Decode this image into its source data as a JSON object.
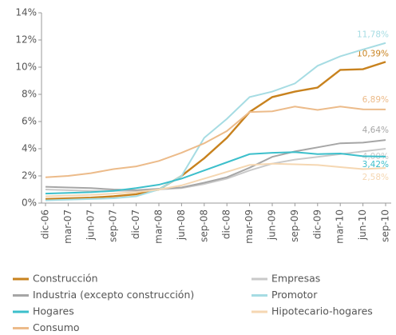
{
  "chart_data": {
    "type": "line",
    "categories": [
      "dic-06",
      "mar-07",
      "jun-07",
      "sep-07",
      "dic-07",
      "mar-08",
      "jun-08",
      "sep-08",
      "dic-08",
      "mar-09",
      "jun-09",
      "sep-09",
      "dic-09",
      "mar-10",
      "jun-10",
      "sep-10"
    ],
    "ylim": [
      0,
      14
    ],
    "yticks": [
      {
        "value": 0,
        "label": "0%"
      },
      {
        "value": 2,
        "label": "2%"
      },
      {
        "value": 4,
        "label": "4%"
      },
      {
        "value": 6,
        "label": "6%"
      },
      {
        "value": 8,
        "label": "8%"
      },
      {
        "value": 10,
        "label": "10%"
      },
      {
        "value": 12,
        "label": "12%"
      },
      {
        "value": 14,
        "label": "14%"
      }
    ],
    "grid": false,
    "legend": "bottom",
    "series": [
      {
        "name": "Construcción",
        "color": "#c8821e",
        "values": [
          0.3,
          0.35,
          0.4,
          0.5,
          0.65,
          1.0,
          2.0,
          3.3,
          4.8,
          6.7,
          7.8,
          8.2,
          8.5,
          9.8,
          9.85,
          10.39
        ],
        "value_labels": [
          null,
          null,
          null,
          null,
          null,
          null,
          null,
          null,
          null,
          null,
          null,
          null,
          null,
          null,
          null,
          "10,39%"
        ]
      },
      {
        "name": "Empresas",
        "color": "#c9c9c9",
        "values": [
          1.0,
          0.95,
          0.9,
          0.9,
          0.9,
          1.0,
          1.1,
          1.4,
          1.8,
          2.4,
          2.9,
          3.2,
          3.4,
          3.6,
          3.8,
          4.0
        ],
        "value_labels": [
          null,
          null,
          null,
          null,
          null,
          null,
          null,
          null,
          null,
          null,
          null,
          null,
          null,
          null,
          null,
          "4,00%"
        ]
      },
      {
        "name": "Industria (excepto construcción)",
        "color": "#a6a6a6",
        "values": [
          1.2,
          1.15,
          1.1,
          1.0,
          0.95,
          1.05,
          1.15,
          1.5,
          1.9,
          2.6,
          3.4,
          3.8,
          4.1,
          4.4,
          4.45,
          4.64
        ],
        "value_labels": [
          null,
          null,
          null,
          null,
          null,
          null,
          null,
          null,
          null,
          null,
          null,
          null,
          null,
          null,
          null,
          "4,64%"
        ]
      },
      {
        "name": "Promotor",
        "color": "#a6dce3",
        "values": [
          0.2,
          0.25,
          0.3,
          0.35,
          0.5,
          1.0,
          2.0,
          4.8,
          6.2,
          7.8,
          8.2,
          8.8,
          10.1,
          10.8,
          11.3,
          11.78
        ],
        "value_labels": [
          null,
          null,
          null,
          null,
          null,
          null,
          null,
          null,
          null,
          null,
          null,
          null,
          null,
          null,
          null,
          "11,78%"
        ]
      },
      {
        "name": "Hogares",
        "color": "#3cbfcb",
        "values": [
          0.7,
          0.75,
          0.8,
          0.9,
          1.1,
          1.35,
          1.8,
          2.4,
          3.0,
          3.6,
          3.7,
          3.75,
          3.6,
          3.65,
          3.45,
          3.42
        ],
        "value_labels": [
          null,
          null,
          null,
          null,
          null,
          null,
          null,
          null,
          null,
          null,
          null,
          null,
          null,
          null,
          null,
          "3,42%"
        ]
      },
      {
        "name": "Hipotecario-hogares",
        "color": "#f5d7b2",
        "values": [
          0.5,
          0.55,
          0.6,
          0.7,
          0.8,
          1.0,
          1.3,
          1.8,
          2.3,
          2.8,
          2.9,
          2.85,
          2.8,
          2.65,
          2.5,
          2.58
        ],
        "value_labels": [
          null,
          null,
          null,
          null,
          null,
          null,
          null,
          null,
          null,
          null,
          null,
          null,
          null,
          null,
          null,
          "2,58%"
        ]
      },
      {
        "name": "Consumo",
        "color": "#ecbb8a",
        "values": [
          1.9,
          2.0,
          2.2,
          2.5,
          2.7,
          3.1,
          3.7,
          4.4,
          5.3,
          6.7,
          6.75,
          7.1,
          6.85,
          7.1,
          6.9,
          6.89
        ],
        "value_labels": [
          null,
          null,
          null,
          null,
          null,
          null,
          null,
          null,
          null,
          null,
          null,
          null,
          null,
          null,
          null,
          "6,89%"
        ]
      }
    ]
  }
}
